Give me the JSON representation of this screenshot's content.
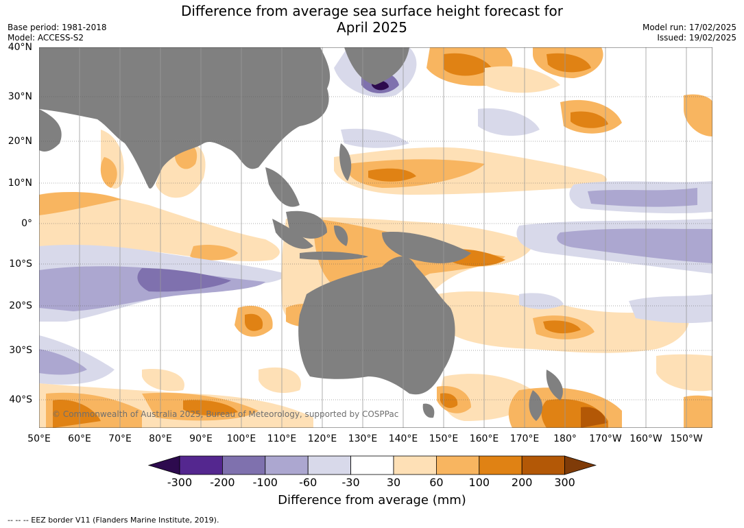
{
  "title_line1": "Difference from average sea surface height forecast for",
  "title_line2": "April 2025",
  "base_period": "Base period: 1981-2018",
  "model": "Model: ACCESS-S2",
  "model_run": "Model run: 17/02/2025",
  "issued": "Issued: 19/02/2025",
  "copyright": "© Commonwealth of Australia 2025, Bureau of Meteorology, supported by COSPPac",
  "footer": "--  --  -- EEZ border V11 (Flanders Marine Institute, 2019).",
  "lat_labels": [
    "40°N",
    "30°N",
    "20°N",
    "10°N",
    "0°",
    "10°S",
    "20°S",
    "30°S",
    "40°S"
  ],
  "lon_labels": [
    "50°E",
    "60°E",
    "70°E",
    "80°E",
    "90°E",
    "100°E",
    "110°E",
    "120°E",
    "130°E",
    "140°E",
    "150°E",
    "160°E",
    "170°E",
    "180°",
    "170°W",
    "160°W",
    "150°W"
  ],
  "colorbar": {
    "label": "Difference from average (mm)",
    "ticks": [
      "-300",
      "-200",
      "-100",
      "-60",
      "-30",
      "30",
      "60",
      "100",
      "200",
      "300"
    ],
    "colors": [
      "#2d0a4e",
      "#54278f",
      "#7f71ae",
      "#aca7d0",
      "#d8d9ea",
      "#ffffff",
      "#fee0b6",
      "#f8b560",
      "#e08214",
      "#b35806",
      "#7f3b08"
    ]
  },
  "colors": {
    "land": "#808080",
    "grid": "#555555"
  }
}
